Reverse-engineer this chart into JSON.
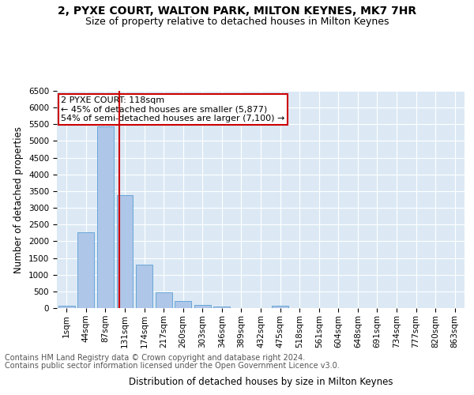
{
  "title": "2, PYXE COURT, WALTON PARK, MILTON KEYNES, MK7 7HR",
  "subtitle": "Size of property relative to detached houses in Milton Keynes",
  "xlabel": "Distribution of detached houses by size in Milton Keynes",
  "ylabel": "Number of detached properties",
  "footer_line1": "Contains HM Land Registry data © Crown copyright and database right 2024.",
  "footer_line2": "Contains public sector information licensed under the Open Government Licence v3.0.",
  "bar_labels": [
    "1sqm",
    "44sqm",
    "87sqm",
    "131sqm",
    "174sqm",
    "217sqm",
    "260sqm",
    "303sqm",
    "346sqm",
    "389sqm",
    "432sqm",
    "475sqm",
    "518sqm",
    "561sqm",
    "604sqm",
    "648sqm",
    "691sqm",
    "734sqm",
    "777sqm",
    "820sqm",
    "863sqm"
  ],
  "bar_values": [
    70,
    2280,
    5430,
    3380,
    1300,
    470,
    210,
    95,
    55,
    0,
    0,
    60,
    0,
    0,
    0,
    0,
    0,
    0,
    0,
    0,
    0
  ],
  "bar_color": "#aec6e8",
  "bar_edge_color": "#5a9fd4",
  "vline_color": "#cc0000",
  "ylim": [
    0,
    6500
  ],
  "yticks": [
    0,
    500,
    1000,
    1500,
    2000,
    2500,
    3000,
    3500,
    4000,
    4500,
    5000,
    5500,
    6000,
    6500
  ],
  "annotation_text": "2 PYXE COURT: 118sqm\n← 45% of detached houses are smaller (5,877)\n54% of semi-detached houses are larger (7,100) →",
  "annotation_box_color": "#ffffff",
  "annotation_box_edge": "#cc0000",
  "plot_bg_color": "#dce9f5",
  "title_fontsize": 10,
  "subtitle_fontsize": 9,
  "axis_label_fontsize": 8.5,
  "tick_fontsize": 7.5,
  "annotation_fontsize": 8,
  "footer_fontsize": 7
}
